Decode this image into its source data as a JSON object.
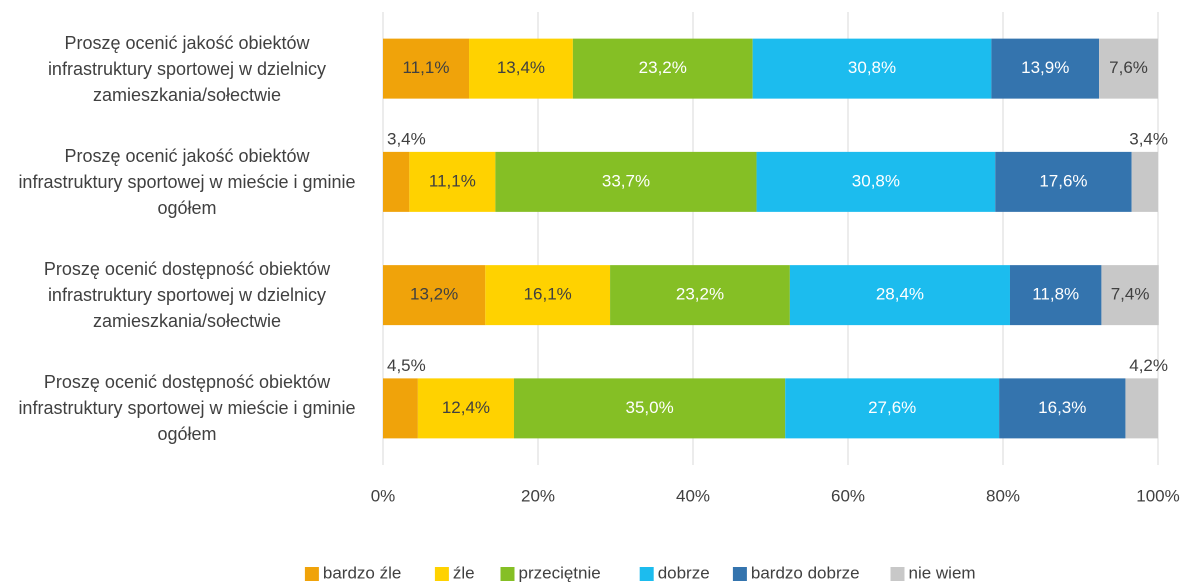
{
  "chart_data": {
    "type": "stacked_bar_horizontal",
    "categories": [
      "Proszę ocenić jakość obiektów infrastruktury sportowej w dzielnicy zamieszkania/sołectwie",
      "Proszę ocenić jakość obiektów infrastruktury sportowej w mieście i gminie ogółem",
      "Proszę ocenić dostępność obiektów infrastruktury sportowej w dzielnicy zamieszkania/sołectwie",
      "Proszę ocenić dostępność obiektów infrastruktury sportowej w mieście i gminie ogółem"
    ],
    "series": [
      {
        "name": "bardzo źle",
        "color": "#f0a30a",
        "label_color": "#404040",
        "values": [
          11.1,
          3.4,
          13.2,
          4.5
        ],
        "value_labels": [
          "11,1%",
          "3,4%",
          "13,2%",
          "4,5%"
        ]
      },
      {
        "name": "źle",
        "color": "#ffd200",
        "label_color": "#404040",
        "values": [
          13.4,
          11.1,
          16.1,
          12.4
        ],
        "value_labels": [
          "13,4%",
          "11,1%",
          "16,1%",
          "12,4%"
        ]
      },
      {
        "name": "przeciętnie",
        "color": "#85bf25",
        "label_color": "#ffffff",
        "values": [
          23.2,
          33.7,
          23.2,
          35.0
        ],
        "value_labels": [
          "23,2%",
          "33,7%",
          "23,2%",
          "35,0%"
        ]
      },
      {
        "name": "dobrze",
        "color": "#1cbcee",
        "label_color": "#ffffff",
        "values": [
          30.8,
          30.8,
          28.4,
          27.6
        ],
        "value_labels": [
          "30,8%",
          "30,8%",
          "28,4%",
          "27,6%"
        ]
      },
      {
        "name": "bardzo dobrze",
        "color": "#3474ae",
        "label_color": "#ffffff",
        "values": [
          13.9,
          17.6,
          11.8,
          16.3
        ],
        "value_labels": [
          "13,9%",
          "17,6%",
          "11,8%",
          "16,3%"
        ]
      },
      {
        "name": "nie wiem",
        "color": "#c8c8c8",
        "label_color": "#404040",
        "values": [
          7.6,
          3.4,
          7.4,
          4.2
        ],
        "value_labels": [
          "7,6%",
          "3,4%",
          "7,4%",
          "4,2%"
        ]
      }
    ],
    "xlim": [
      0,
      100
    ],
    "xticks": [
      {
        "value": 0,
        "label": "0%"
      },
      {
        "value": 20,
        "label": "20%"
      },
      {
        "value": 40,
        "label": "40%"
      },
      {
        "value": 60,
        "label": "60%"
      },
      {
        "value": 80,
        "label": "80%"
      },
      {
        "value": 100,
        "label": "100%"
      }
    ],
    "grid": true,
    "legend": "bottom"
  }
}
